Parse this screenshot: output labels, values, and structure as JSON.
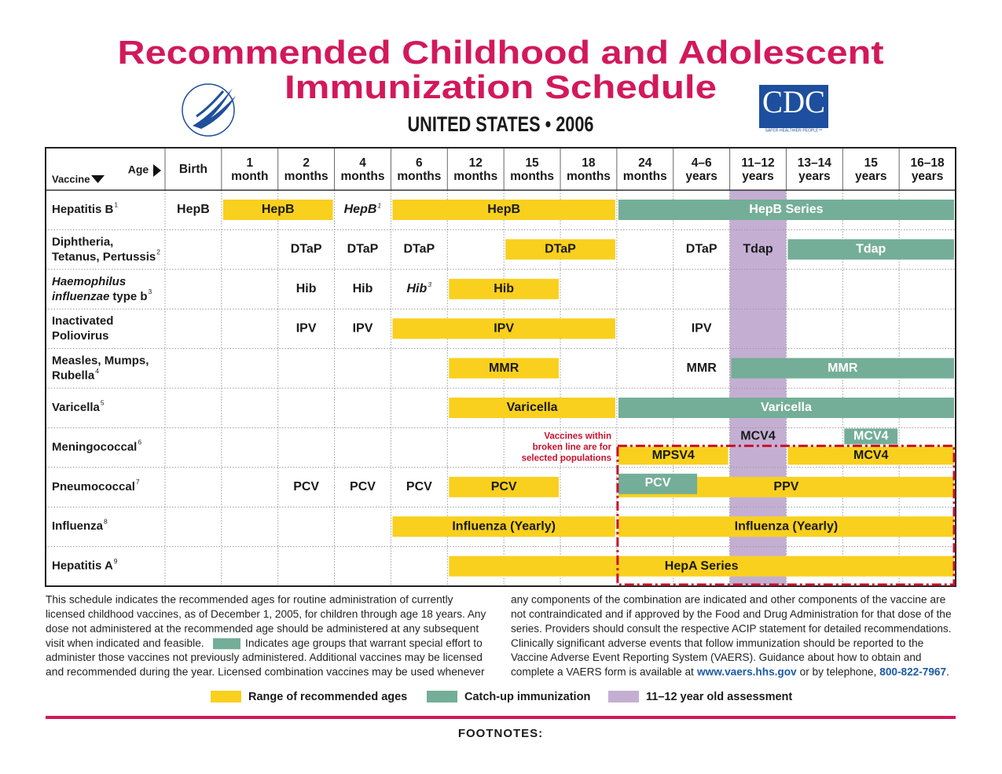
{
  "title": [
    "Recommended Childhood and Adolescent",
    "Immunization Schedule"
  ],
  "subtitle": "UNITED STATES • 2006",
  "logo": "CDC",
  "logo_tagline": "SAFER·HEALTHIER·PEOPLE™",
  "colors": {
    "range": "#f9d01e",
    "catchup": "#74ae98",
    "assessment": "#c4afd3",
    "title": "#d2195a",
    "selected": "#c8102e",
    "link": "#1b5aa6"
  },
  "header": {
    "age": "Age",
    "vaccine": "Vaccine",
    "ages": [
      [
        "Birth"
      ],
      [
        "1",
        "month"
      ],
      [
        "2",
        "months"
      ],
      [
        "4",
        "months"
      ],
      [
        "6",
        "months"
      ],
      [
        "12",
        "months"
      ],
      [
        "15",
        "months"
      ],
      [
        "18",
        "months"
      ],
      [
        "24",
        "months"
      ],
      [
        "4–6",
        "years"
      ],
      [
        "11–12",
        "years"
      ],
      [
        "13–14",
        "years"
      ],
      [
        "15",
        "years"
      ],
      [
        "16–18",
        "years"
      ]
    ]
  },
  "rows": [
    {
      "name": [
        [
          "Hepatitis B"
        ]
      ],
      "note": "1",
      "items": [
        {
          "label": "HepB",
          "kind": "plain"
        },
        {
          "label": "HepB",
          "kind": "range"
        },
        {
          "label": "HepB",
          "sup": "1",
          "kind": "plain"
        },
        {
          "label": "HepB",
          "kind": "range"
        },
        {
          "label": "HepB Series",
          "kind": "catchup"
        }
      ]
    },
    {
      "name": [
        [
          "Diphtheria,"
        ],
        [
          "Tetanus, Pertussis"
        ]
      ],
      "note": "2",
      "items": [
        {
          "label": "DTaP",
          "kind": "plain"
        },
        {
          "label": "DTaP",
          "kind": "plain"
        },
        {
          "label": "DTaP",
          "kind": "plain"
        },
        {
          "label": "DTaP",
          "kind": "range"
        },
        {
          "label": "DTaP",
          "kind": "plain"
        },
        {
          "label": "Tdap",
          "kind": "plain"
        },
        {
          "label": "Tdap",
          "kind": "catchup"
        }
      ]
    },
    {
      "name": [
        [
          "Haemophilus"
        ],
        [
          "influenzae",
          "type b"
        ]
      ],
      "note": "3",
      "items": [
        {
          "label": "Hib",
          "kind": "plain"
        },
        {
          "label": "Hib",
          "kind": "plain"
        },
        {
          "label": "Hib",
          "sup": "3",
          "kind": "plain"
        },
        {
          "label": "Hib",
          "kind": "range"
        }
      ]
    },
    {
      "name": [
        [
          "Inactivated"
        ],
        [
          "Poliovirus"
        ]
      ],
      "items": [
        {
          "label": "IPV",
          "kind": "plain"
        },
        {
          "label": "IPV",
          "kind": "plain"
        },
        {
          "label": "IPV",
          "kind": "range"
        },
        {
          "label": "IPV",
          "kind": "plain"
        }
      ]
    },
    {
      "name": [
        [
          "Measles, Mumps,"
        ],
        [
          "Rubella"
        ]
      ],
      "note": "4",
      "items": [
        {
          "label": "MMR",
          "kind": "range"
        },
        {
          "label": "MMR",
          "kind": "plain"
        },
        {
          "label": "MMR",
          "kind": "catchup"
        }
      ]
    },
    {
      "name": [
        [
          "Varicella"
        ]
      ],
      "note": "5",
      "items": [
        {
          "label": "Varicella",
          "kind": "range"
        },
        {
          "label": "Varicella",
          "kind": "catchup"
        }
      ]
    },
    {
      "name": [
        [
          "Meningococcal"
        ]
      ],
      "note": "6",
      "callout": [
        "Vaccines within",
        "broken line are for",
        "selected populations"
      ],
      "items": [
        {
          "label": "MCV4",
          "kind": "plain"
        },
        {
          "label": "MCV4",
          "kind": "catchup"
        },
        {
          "label": "MPSV4",
          "kind": "range"
        },
        {
          "label": "MCV4",
          "kind": "range"
        }
      ]
    },
    {
      "name": [
        [
          "Pneumococcal"
        ]
      ],
      "note": "7",
      "items": [
        {
          "label": "PCV",
          "kind": "plain"
        },
        {
          "label": "PCV",
          "kind": "plain"
        },
        {
          "label": "PCV",
          "kind": "plain"
        },
        {
          "label": "PCV",
          "kind": "range"
        },
        {
          "label": "PPV",
          "kind": "range"
        },
        {
          "label": "PCV",
          "kind": "catchup"
        }
      ]
    },
    {
      "name": [
        [
          "Influenza"
        ]
      ],
      "note": "8",
      "items": [
        {
          "label": "Influenza (Yearly)",
          "kind": "range"
        },
        {
          "label": "Influenza (Yearly)",
          "kind": "range"
        }
      ]
    },
    {
      "name": [
        [
          "Hepatitis A"
        ]
      ],
      "note": "9",
      "items": [
        {
          "label": "HepA Series",
          "kind": "range"
        }
      ]
    }
  ],
  "footer": {
    "left": [
      [
        "This schedule indicates the recommended ages for routine administration of currently"
      ],
      [
        "licensed childhood vaccines, as of December 1, 2005, for children through age 18 years. Any"
      ],
      [
        "dose not administered at the recommended age should be administered at any subsequent"
      ],
      [
        "visit when indicated and feasible.",
        "Indicates age groups that warrant special effort to"
      ],
      [
        "administer those vaccines not previously administered. Additional vaccines may be licensed"
      ],
      [
        "and recommended during the year. Licensed combination vaccines may be used whenever"
      ]
    ],
    "right": [
      [
        "any components of the combination are indicated and other components of the vaccine are"
      ],
      [
        "not contraindicated and if approved by the Food and Drug Administration for that dose of the"
      ],
      [
        "series. Providers should consult the respective ACIP statement for detailed recommendations."
      ],
      [
        "Clinically significant adverse events that follow immunization should be reported to the"
      ],
      [
        "Vaccine Adverse Event Reporting System (VAERS). Guidance about how to obtain and"
      ],
      [
        "complete a VAERS form is available at ",
        "www.vaers.hhs.gov",
        " or by telephone, ",
        "800-822-7967",
        "."
      ]
    ]
  },
  "legend": [
    "Range of recommended ages",
    "Catch-up immunization",
    "11–12 year old assessment"
  ],
  "footnotes_heading": "FOOTNOTES:"
}
